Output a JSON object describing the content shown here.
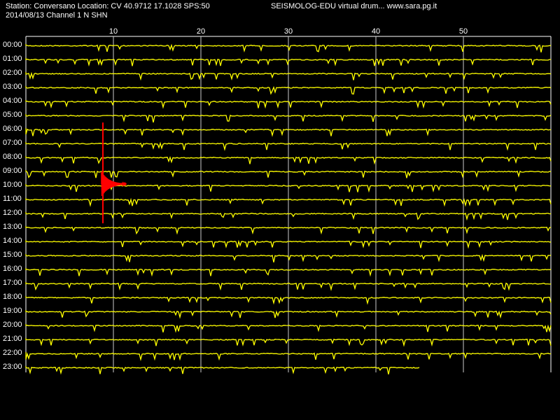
{
  "header": {
    "station_line": "Station: Conversano Location: CV 40.9712 17.1028 SPS:50",
    "date_line": "2014/08/13  Channel 1 N SHN",
    "source_line": "SEISMOLOG-EDU virtual drum... www.sara.pg.it"
  },
  "colors": {
    "background": "#000000",
    "trace": "#ffff00",
    "event": "#ff0000",
    "grid": "#ffffff",
    "text": "#ffffff"
  },
  "chart_data": {
    "type": "line",
    "title": "",
    "xlabel": "",
    "ylabel": "",
    "x_range": [
      0,
      60
    ],
    "x_ticks": [
      10,
      20,
      30,
      40,
      50
    ],
    "grid": true,
    "rows": [
      "00:00",
      "01:00",
      "02:00",
      "03:00",
      "04:00",
      "05:00",
      "06:00",
      "07:00",
      "08:00",
      "09:00",
      "10:00",
      "11:00",
      "12:00",
      "13:00",
      "14:00",
      "15:00",
      "16:00",
      "17:00",
      "18:00",
      "19:00",
      "20:00",
      "21:00",
      "22:00",
      "23:00"
    ],
    "last_row_end_minute": 45,
    "event": {
      "row": "10:00",
      "minute": 8.8
    }
  }
}
